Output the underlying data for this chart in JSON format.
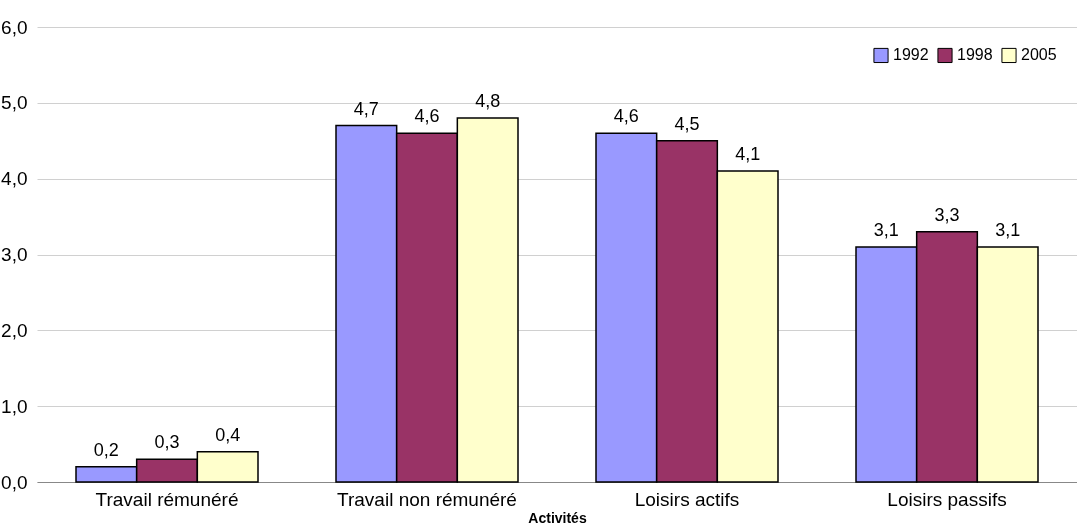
{
  "chart_data": {
    "type": "bar",
    "xlabel": "Activités",
    "categories": [
      "Travail rémunéré",
      "Travail non rémunéré",
      "Loisirs actifs",
      "Loisirs passifs"
    ],
    "series": [
      {
        "name": "1992",
        "color": "#9999ff",
        "values": [
          0.2,
          4.7,
          4.6,
          3.1
        ],
        "value_labels": [
          "0,2",
          "4,7",
          "4,6",
          "3,1"
        ]
      },
      {
        "name": "1998",
        "color": "#993366",
        "values": [
          0.3,
          4.6,
          4.5,
          3.3
        ],
        "value_labels": [
          "0,3",
          "4,6",
          "4,5",
          "3,3"
        ]
      },
      {
        "name": "2005",
        "color": "#ffffcc",
        "values": [
          0.4,
          4.8,
          4.1,
          3.1
        ],
        "value_labels": [
          "0,4",
          "4,8",
          "4,1",
          "3,1"
        ]
      }
    ],
    "ylim": [
      0,
      6
    ],
    "yticks": [
      {
        "value": 0,
        "label": "0,0"
      },
      {
        "value": 1,
        "label": "1,0"
      },
      {
        "value": 2,
        "label": "2,0"
      },
      {
        "value": 3,
        "label": "3,0"
      },
      {
        "value": 4,
        "label": "4,0"
      },
      {
        "value": 5,
        "label": "5,0"
      },
      {
        "value": 6,
        "label": "6,0"
      }
    ],
    "grid": "y",
    "legend": "top right"
  }
}
